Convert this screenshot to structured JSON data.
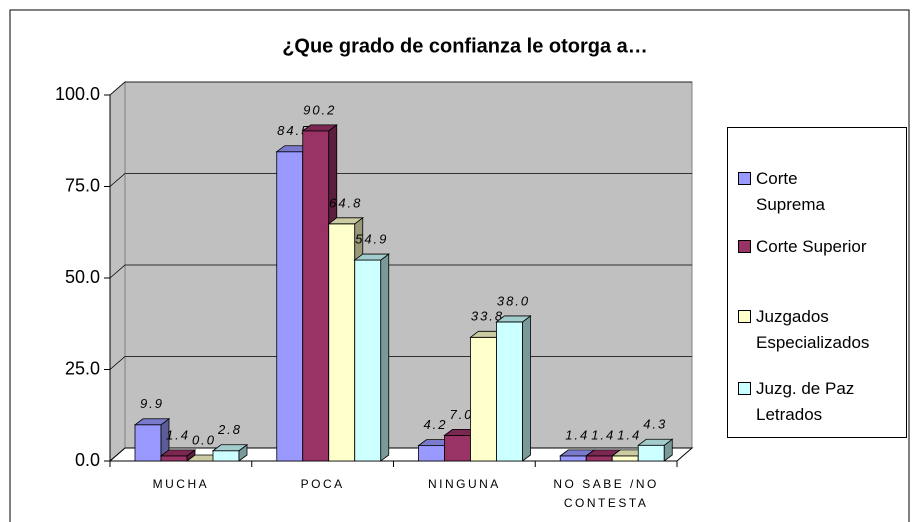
{
  "chart_data": {
    "type": "bar3d",
    "title": "¿Que grado de confianza le otorga a…",
    "categories": [
      "MUCHA",
      "POCA",
      "NINGUNA",
      "NO SABE /NO CONTESTA"
    ],
    "series": [
      {
        "name": "Corte Suprema",
        "color": "#9999ff",
        "values": [
          9.9,
          84.5,
          4.2,
          1.4
        ],
        "value_labels": [
          "9.9",
          "84.5",
          "4.2",
          "1.4"
        ]
      },
      {
        "name": "Corte Superior",
        "color": "#993366",
        "values": [
          1.4,
          90.2,
          7.0,
          1.4
        ],
        "value_labels": [
          "1.4",
          "90.2",
          "7.0",
          "1.4"
        ]
      },
      {
        "name": "Juzgados Especializados",
        "color": "#ffffcc",
        "values": [
          0.0,
          64.8,
          33.8,
          1.4
        ],
        "value_labels": [
          "0.0",
          "64.8",
          "33.8",
          "1.4"
        ]
      },
      {
        "name": "Juzg. de Paz Letrados",
        "color": "#ccffff",
        "values": [
          2.8,
          54.9,
          38.0,
          4.3
        ],
        "value_labels": [
          "2.8",
          "54.9",
          "38.0",
          "4.3"
        ]
      }
    ],
    "ylim": [
      0,
      100
    ],
    "yticks": [
      {
        "value": 0,
        "label": "0.0"
      },
      {
        "value": 25,
        "label": "25.0"
      },
      {
        "value": 50,
        "label": "50.0"
      },
      {
        "value": 75,
        "label": "75.0"
      },
      {
        "value": 100,
        "label": "100.0"
      }
    ],
    "grid": true,
    "legend": "right"
  }
}
